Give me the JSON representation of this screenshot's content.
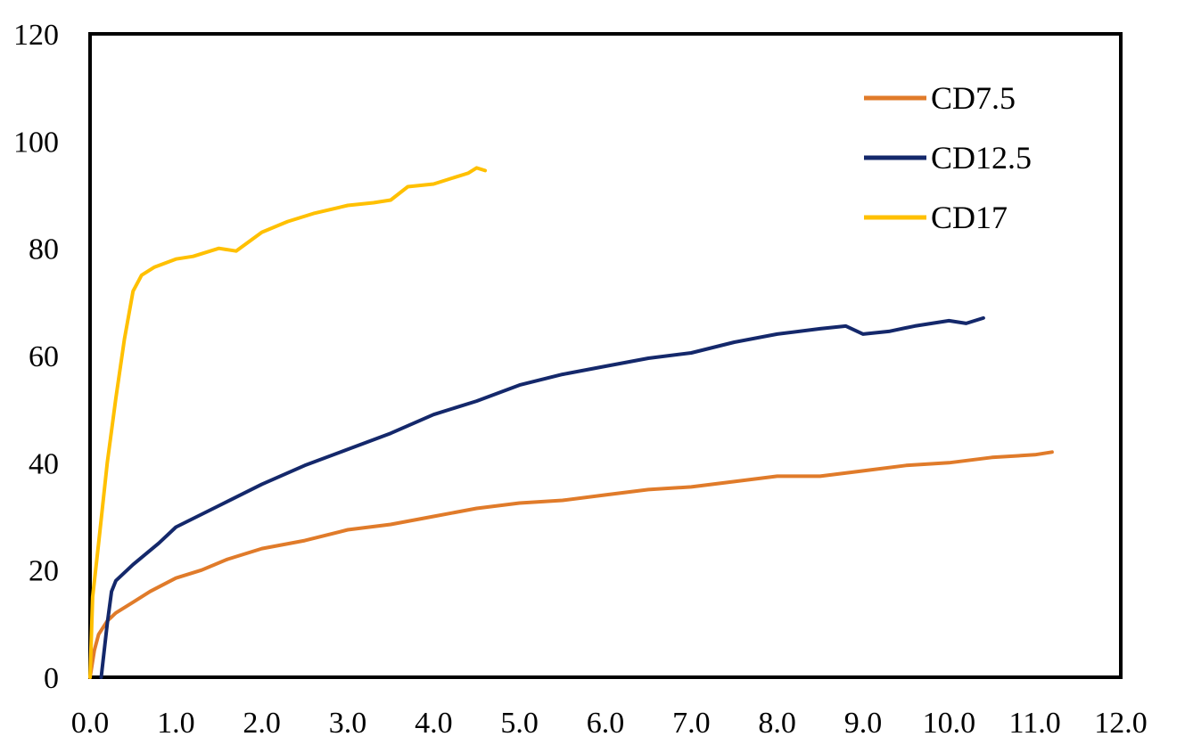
{
  "chart_data": {
    "type": "line",
    "title": "",
    "xlabel": "",
    "ylabel": "",
    "xlim": [
      0,
      12
    ],
    "ylim": [
      0,
      120
    ],
    "x_ticks": [
      "0.0",
      "1.0",
      "2.0",
      "3.0",
      "4.0",
      "5.0",
      "6.0",
      "7.0",
      "8.0",
      "9.0",
      "10.0",
      "11.0",
      "12.0"
    ],
    "y_ticks": [
      "0",
      "20",
      "40",
      "60",
      "80",
      "100",
      "120"
    ],
    "grid": false,
    "legend_position": "top-right",
    "series": [
      {
        "name": "CD7.5",
        "color": "#E07B2A",
        "points": [
          [
            0.0,
            0
          ],
          [
            0.05,
            5
          ],
          [
            0.1,
            8
          ],
          [
            0.2,
            10.5
          ],
          [
            0.3,
            12
          ],
          [
            0.5,
            14
          ],
          [
            0.7,
            16
          ],
          [
            1.0,
            18.5
          ],
          [
            1.3,
            20
          ],
          [
            1.6,
            22
          ],
          [
            2.0,
            24
          ],
          [
            2.5,
            25.5
          ],
          [
            3.0,
            27.5
          ],
          [
            3.5,
            28.5
          ],
          [
            4.0,
            30
          ],
          [
            4.5,
            31.5
          ],
          [
            5.0,
            32.5
          ],
          [
            5.5,
            33
          ],
          [
            6.0,
            34
          ],
          [
            6.5,
            35
          ],
          [
            7.0,
            35.5
          ],
          [
            7.5,
            36.5
          ],
          [
            8.0,
            37.5
          ],
          [
            8.5,
            37.5
          ],
          [
            9.0,
            38.5
          ],
          [
            9.5,
            39.5
          ],
          [
            10.0,
            40
          ],
          [
            10.5,
            41
          ],
          [
            11.0,
            41.5
          ],
          [
            11.2,
            42
          ]
        ]
      },
      {
        "name": "CD12.5",
        "color": "#14286B",
        "points": [
          [
            0.13,
            0
          ],
          [
            0.2,
            10
          ],
          [
            0.25,
            16
          ],
          [
            0.3,
            18
          ],
          [
            0.5,
            21
          ],
          [
            0.8,
            25
          ],
          [
            1.0,
            28
          ],
          [
            1.5,
            32
          ],
          [
            2.0,
            36
          ],
          [
            2.5,
            39.5
          ],
          [
            3.0,
            42.5
          ],
          [
            3.5,
            45.5
          ],
          [
            4.0,
            49
          ],
          [
            4.5,
            51.5
          ],
          [
            5.0,
            54.5
          ],
          [
            5.5,
            56.5
          ],
          [
            6.0,
            58
          ],
          [
            6.5,
            59.5
          ],
          [
            7.0,
            60.5
          ],
          [
            7.5,
            62.5
          ],
          [
            8.0,
            64
          ],
          [
            8.5,
            65
          ],
          [
            8.8,
            65.5
          ],
          [
            9.0,
            64
          ],
          [
            9.3,
            64.5
          ],
          [
            9.6,
            65.5
          ],
          [
            10.0,
            66.5
          ],
          [
            10.2,
            66
          ],
          [
            10.4,
            67
          ]
        ]
      },
      {
        "name": "CD17",
        "color": "#FFC000",
        "points": [
          [
            0.0,
            0
          ],
          [
            0.03,
            15
          ],
          [
            0.1,
            25
          ],
          [
            0.2,
            40
          ],
          [
            0.3,
            52
          ],
          [
            0.4,
            63
          ],
          [
            0.5,
            72
          ],
          [
            0.6,
            75
          ],
          [
            0.75,
            76.5
          ],
          [
            1.0,
            78
          ],
          [
            1.2,
            78.5
          ],
          [
            1.5,
            80
          ],
          [
            1.7,
            79.5
          ],
          [
            2.0,
            83
          ],
          [
            2.3,
            85
          ],
          [
            2.6,
            86.5
          ],
          [
            3.0,
            88
          ],
          [
            3.3,
            88.5
          ],
          [
            3.5,
            89
          ],
          [
            3.7,
            91.5
          ],
          [
            4.0,
            92
          ],
          [
            4.2,
            93
          ],
          [
            4.4,
            94
          ],
          [
            4.5,
            95
          ],
          [
            4.6,
            94.5
          ]
        ]
      }
    ]
  }
}
